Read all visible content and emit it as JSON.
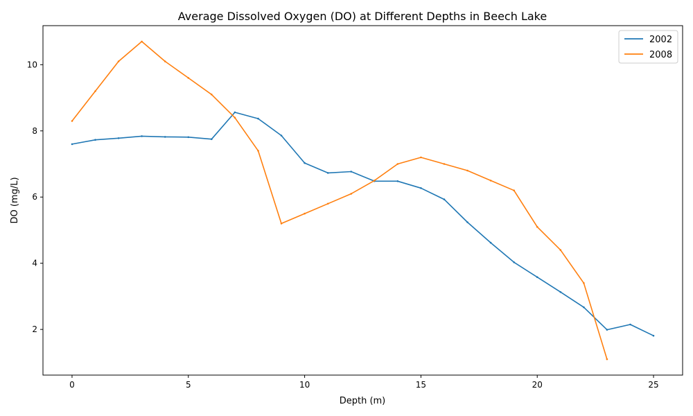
{
  "chart_data": {
    "type": "line",
    "title": "Average Dissolved Oxygen (DO) at Different Depths in Beech Lake",
    "xlabel": "Depth (m)",
    "ylabel": "DO (mg/L)",
    "xlim": [
      -1.25,
      26.25
    ],
    "ylim": [
      0.62,
      11.18
    ],
    "xticks": [
      0,
      5,
      10,
      15,
      20,
      25
    ],
    "yticks": [
      2,
      4,
      6,
      8,
      10
    ],
    "grid": false,
    "legend_position": "top-right",
    "series": [
      {
        "name": "2002",
        "color": "#1f77b4",
        "x": [
          0,
          1,
          2,
          3,
          4,
          5,
          6,
          7,
          8,
          9,
          10,
          11,
          12,
          13,
          14,
          15,
          16,
          17,
          18,
          19,
          20,
          21,
          22,
          23,
          24,
          25
        ],
        "y": [
          7.6,
          7.73,
          7.78,
          7.84,
          7.82,
          7.81,
          7.75,
          8.56,
          8.37,
          7.86,
          7.03,
          6.73,
          6.77,
          6.48,
          6.48,
          6.27,
          5.93,
          5.24,
          4.62,
          4.03,
          3.58,
          3.13,
          2.67,
          1.99,
          2.15,
          1.81
        ]
      },
      {
        "name": "2008",
        "color": "#ff7f0e",
        "x": [
          0,
          1,
          2,
          3,
          4,
          5,
          6,
          7,
          8,
          9,
          10,
          11,
          12,
          13,
          14,
          15,
          16,
          17,
          18,
          19,
          20,
          21,
          22,
          23
        ],
        "y": [
          8.3,
          9.2,
          10.1,
          10.7,
          10.1,
          9.6,
          9.1,
          8.4,
          7.4,
          5.2,
          5.5,
          5.8,
          6.1,
          6.5,
          7.0,
          7.2,
          7.0,
          6.8,
          6.5,
          6.2,
          5.1,
          4.4,
          3.4,
          1.1
        ]
      }
    ]
  }
}
